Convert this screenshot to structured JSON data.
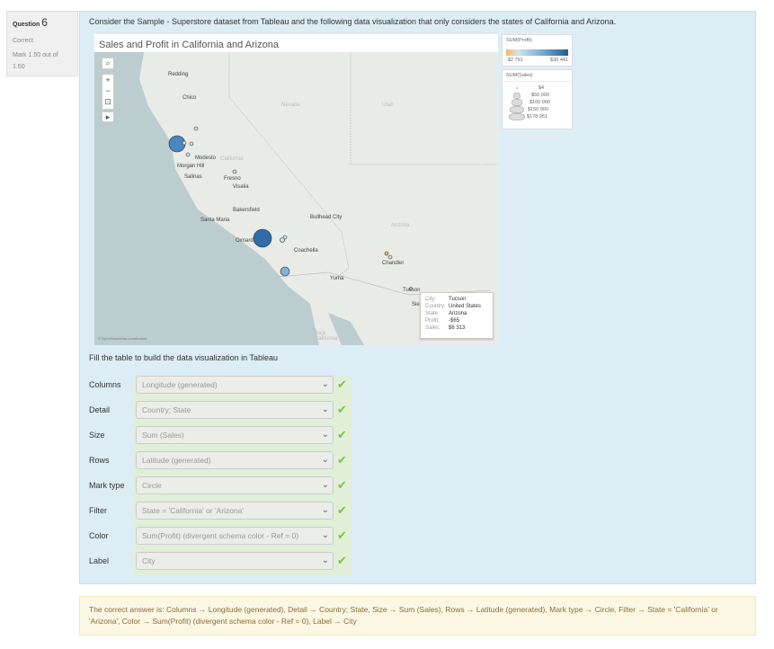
{
  "question": {
    "label": "Question",
    "number": "6",
    "status": "Correct",
    "mark": "Mark 1.50 out of 1.50"
  },
  "prompt": "Consider the Sample - Superstore dataset from Tableau and the following data visualization that only considers the states of California and Arizona.",
  "viz": {
    "title": "Sales and Profit in California and Arizona",
    "cities": [
      "Redding",
      "Chico",
      "Modesto",
      "Morgan Hill",
      "Salinas",
      "Fresno",
      "Visalia",
      "Bakersfield",
      "Santa Maria",
      "Oxnard",
      "Coachella",
      "Bullhead City",
      "Chandler",
      "Yuma",
      "Tucson",
      "Sie"
    ],
    "regions": [
      "Nevada",
      "Utah",
      "California",
      "Arizona",
      "Baja California"
    ],
    "attribution": "© OpenStreetMap contributors",
    "tooltip": {
      "rows": [
        {
          "k": "City:",
          "v": "Tucson"
        },
        {
          "k": "Country:",
          "v": "United States"
        },
        {
          "k": "State:",
          "v": "Arizona"
        },
        {
          "k": "Profit:",
          "v": "-$65"
        },
        {
          "k": "Sales:",
          "v": "$6 313"
        }
      ]
    },
    "profit_legend": {
      "title": "SUM(Profit)",
      "min": "-$2 791",
      "max": "$30 441",
      "colors": [
        "#f4b860",
        "#cfe3ef",
        "#1f5d97"
      ]
    },
    "sales_legend": {
      "title": "SUM(Sales)",
      "items": [
        "$4",
        "$50 000",
        "$100 000",
        "$150 000",
        "$178 951"
      ]
    }
  },
  "fill_instruction": "Fill the table to build the data visualization in Tableau",
  "fields": [
    {
      "label": "Columns",
      "value": "Longitude (generated)"
    },
    {
      "label": "Detail",
      "value": "Country; State"
    },
    {
      "label": "Size",
      "value": "Sum (Sales)"
    },
    {
      "label": "Rows",
      "value": "Latitude (generated)"
    },
    {
      "label": "Mark type",
      "value": "Circle"
    },
    {
      "label": "Filter",
      "value": "State = 'California' or 'Arizona'"
    },
    {
      "label": "Color",
      "value": "Sum(Profit) (divergent schema color - Ref = 0)"
    },
    {
      "label": "Label",
      "value": "City"
    }
  ],
  "feedback": "The correct answer is: Columns → Longitude (generated), Detail → Country; State, Size → Sum (Sales), Rows → Latitude (generated), Mark type → Circle, Filter → State = 'California' or 'Arizona', Color → Sum(Profit) (divergent schema color - Ref = 0), Label → City"
}
